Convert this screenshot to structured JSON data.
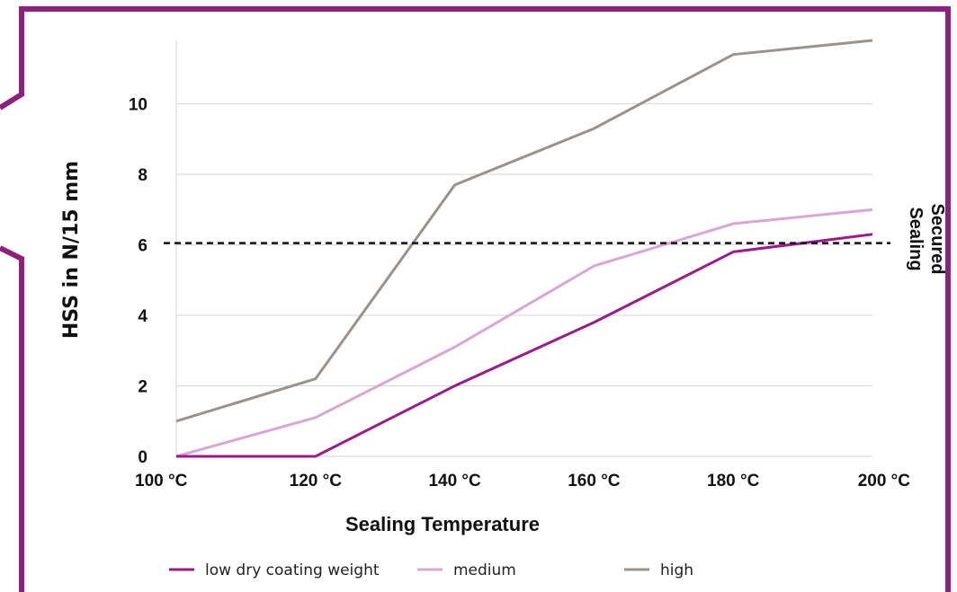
{
  "chart_data": {
    "type": "line",
    "title": "",
    "xlabel": "Sealing Temperature",
    "ylabel": "HSS in N/15 mm",
    "categories": [
      "100 °C",
      "120 °C",
      "140 °C",
      "160 °C",
      "180 °C",
      "200 °C"
    ],
    "yticks": [
      "0",
      "2",
      "4",
      "6",
      "8",
      "10"
    ],
    "ylim": [
      0,
      11.8
    ],
    "grid": true,
    "legend_position": "bottom",
    "series": [
      {
        "name": "low dry coating weight",
        "color": "#9b1b8e",
        "values": [
          0,
          0,
          2.0,
          3.8,
          5.8,
          6.3
        ]
      },
      {
        "name": "medium",
        "color": "#d9a6d6",
        "values": [
          0,
          1.1,
          3.1,
          5.4,
          6.6,
          7.0
        ]
      },
      {
        "name": "high",
        "color": "#9a928c",
        "values": [
          1.0,
          2.2,
          7.7,
          9.3,
          11.4,
          11.8
        ]
      }
    ],
    "reference_line": {
      "value": 6.05,
      "label_line1": "Secured",
      "label_line2": "Sealing"
    }
  },
  "colors": {
    "frame": "#8e1f80",
    "grid": "#d6d6d6",
    "reference": "#111111"
  }
}
